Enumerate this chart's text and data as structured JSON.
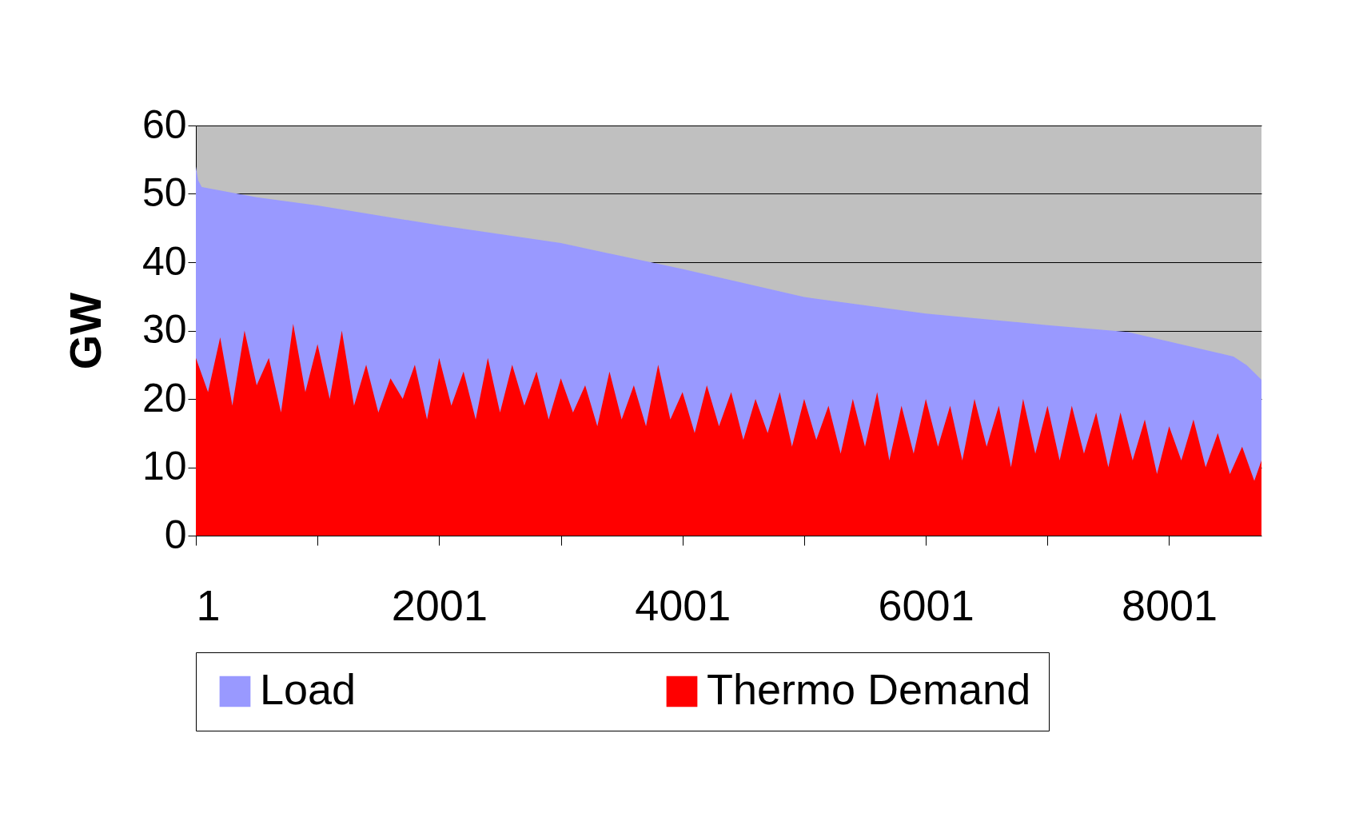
{
  "chart_data": {
    "type": "area",
    "ylabel": "GW",
    "xlim": [
      1,
      8760
    ],
    "xticks": [
      1,
      {
        "value": 1001,
        "label": null
      },
      2001,
      {
        "value": 3001,
        "label": null
      },
      4001,
      {
        "value": 5001,
        "label": null
      },
      6001,
      {
        "value": 7001,
        "label": null
      },
      8001
    ],
    "ylim": [
      0,
      60
    ],
    "yticks": [
      0,
      10,
      20,
      30,
      40,
      50,
      60
    ],
    "grid": "y",
    "legend": "bottom",
    "series": [
      {
        "name": "Load",
        "color": "#9999ff",
        "x": [
          1,
          20,
          50,
          200,
          500,
          1001,
          2001,
          3001,
          4001,
          5001,
          6001,
          7001,
          7660,
          8001,
          8530,
          8640,
          8760
        ],
        "values": [
          54,
          52,
          51,
          50.5,
          49.5,
          48.3,
          45.4,
          42.8,
          39,
          34.9,
          32.5,
          30.8,
          29.8,
          28.4,
          26.2,
          24.9,
          22.8
        ]
      },
      {
        "name": "Thermo Demand",
        "color": "#ff0000",
        "x": [
          1,
          101,
          201,
          301,
          401,
          501,
          601,
          701,
          801,
          901,
          1001,
          1101,
          1201,
          1301,
          1401,
          1501,
          1601,
          1701,
          1801,
          1901,
          2001,
          2101,
          2201,
          2301,
          2401,
          2501,
          2601,
          2701,
          2801,
          2901,
          3001,
          3101,
          3201,
          3301,
          3401,
          3501,
          3601,
          3701,
          3801,
          3901,
          4001,
          4101,
          4201,
          4301,
          4401,
          4501,
          4601,
          4701,
          4801,
          4901,
          5001,
          5101,
          5201,
          5301,
          5401,
          5501,
          5601,
          5701,
          5801,
          5901,
          6001,
          6101,
          6201,
          6301,
          6401,
          6501,
          6601,
          6701,
          6801,
          6901,
          7001,
          7101,
          7201,
          7301,
          7401,
          7501,
          7601,
          7701,
          7801,
          7901,
          8001,
          8101,
          8201,
          8301,
          8401,
          8501,
          8601,
          8701,
          8760
        ],
        "values": [
          26,
          21,
          29,
          19,
          30,
          22,
          26,
          18,
          31,
          21,
          28,
          20,
          30,
          19,
          25,
          18,
          23,
          20,
          25,
          17,
          26,
          19,
          24,
          17,
          26,
          18,
          25,
          19,
          24,
          17,
          23,
          18,
          22,
          16,
          24,
          17,
          22,
          16,
          25,
          17,
          21,
          15,
          22,
          16,
          21,
          14,
          20,
          15,
          21,
          13,
          20,
          14,
          19,
          12,
          20,
          13,
          21,
          11,
          19,
          12,
          20,
          13,
          19,
          11,
          20,
          13,
          19,
          10,
          20,
          12,
          19,
          11,
          19,
          12,
          18,
          10,
          18,
          11,
          17,
          9,
          16,
          11,
          17,
          10,
          15,
          9,
          13,
          8,
          11
        ]
      }
    ]
  }
}
